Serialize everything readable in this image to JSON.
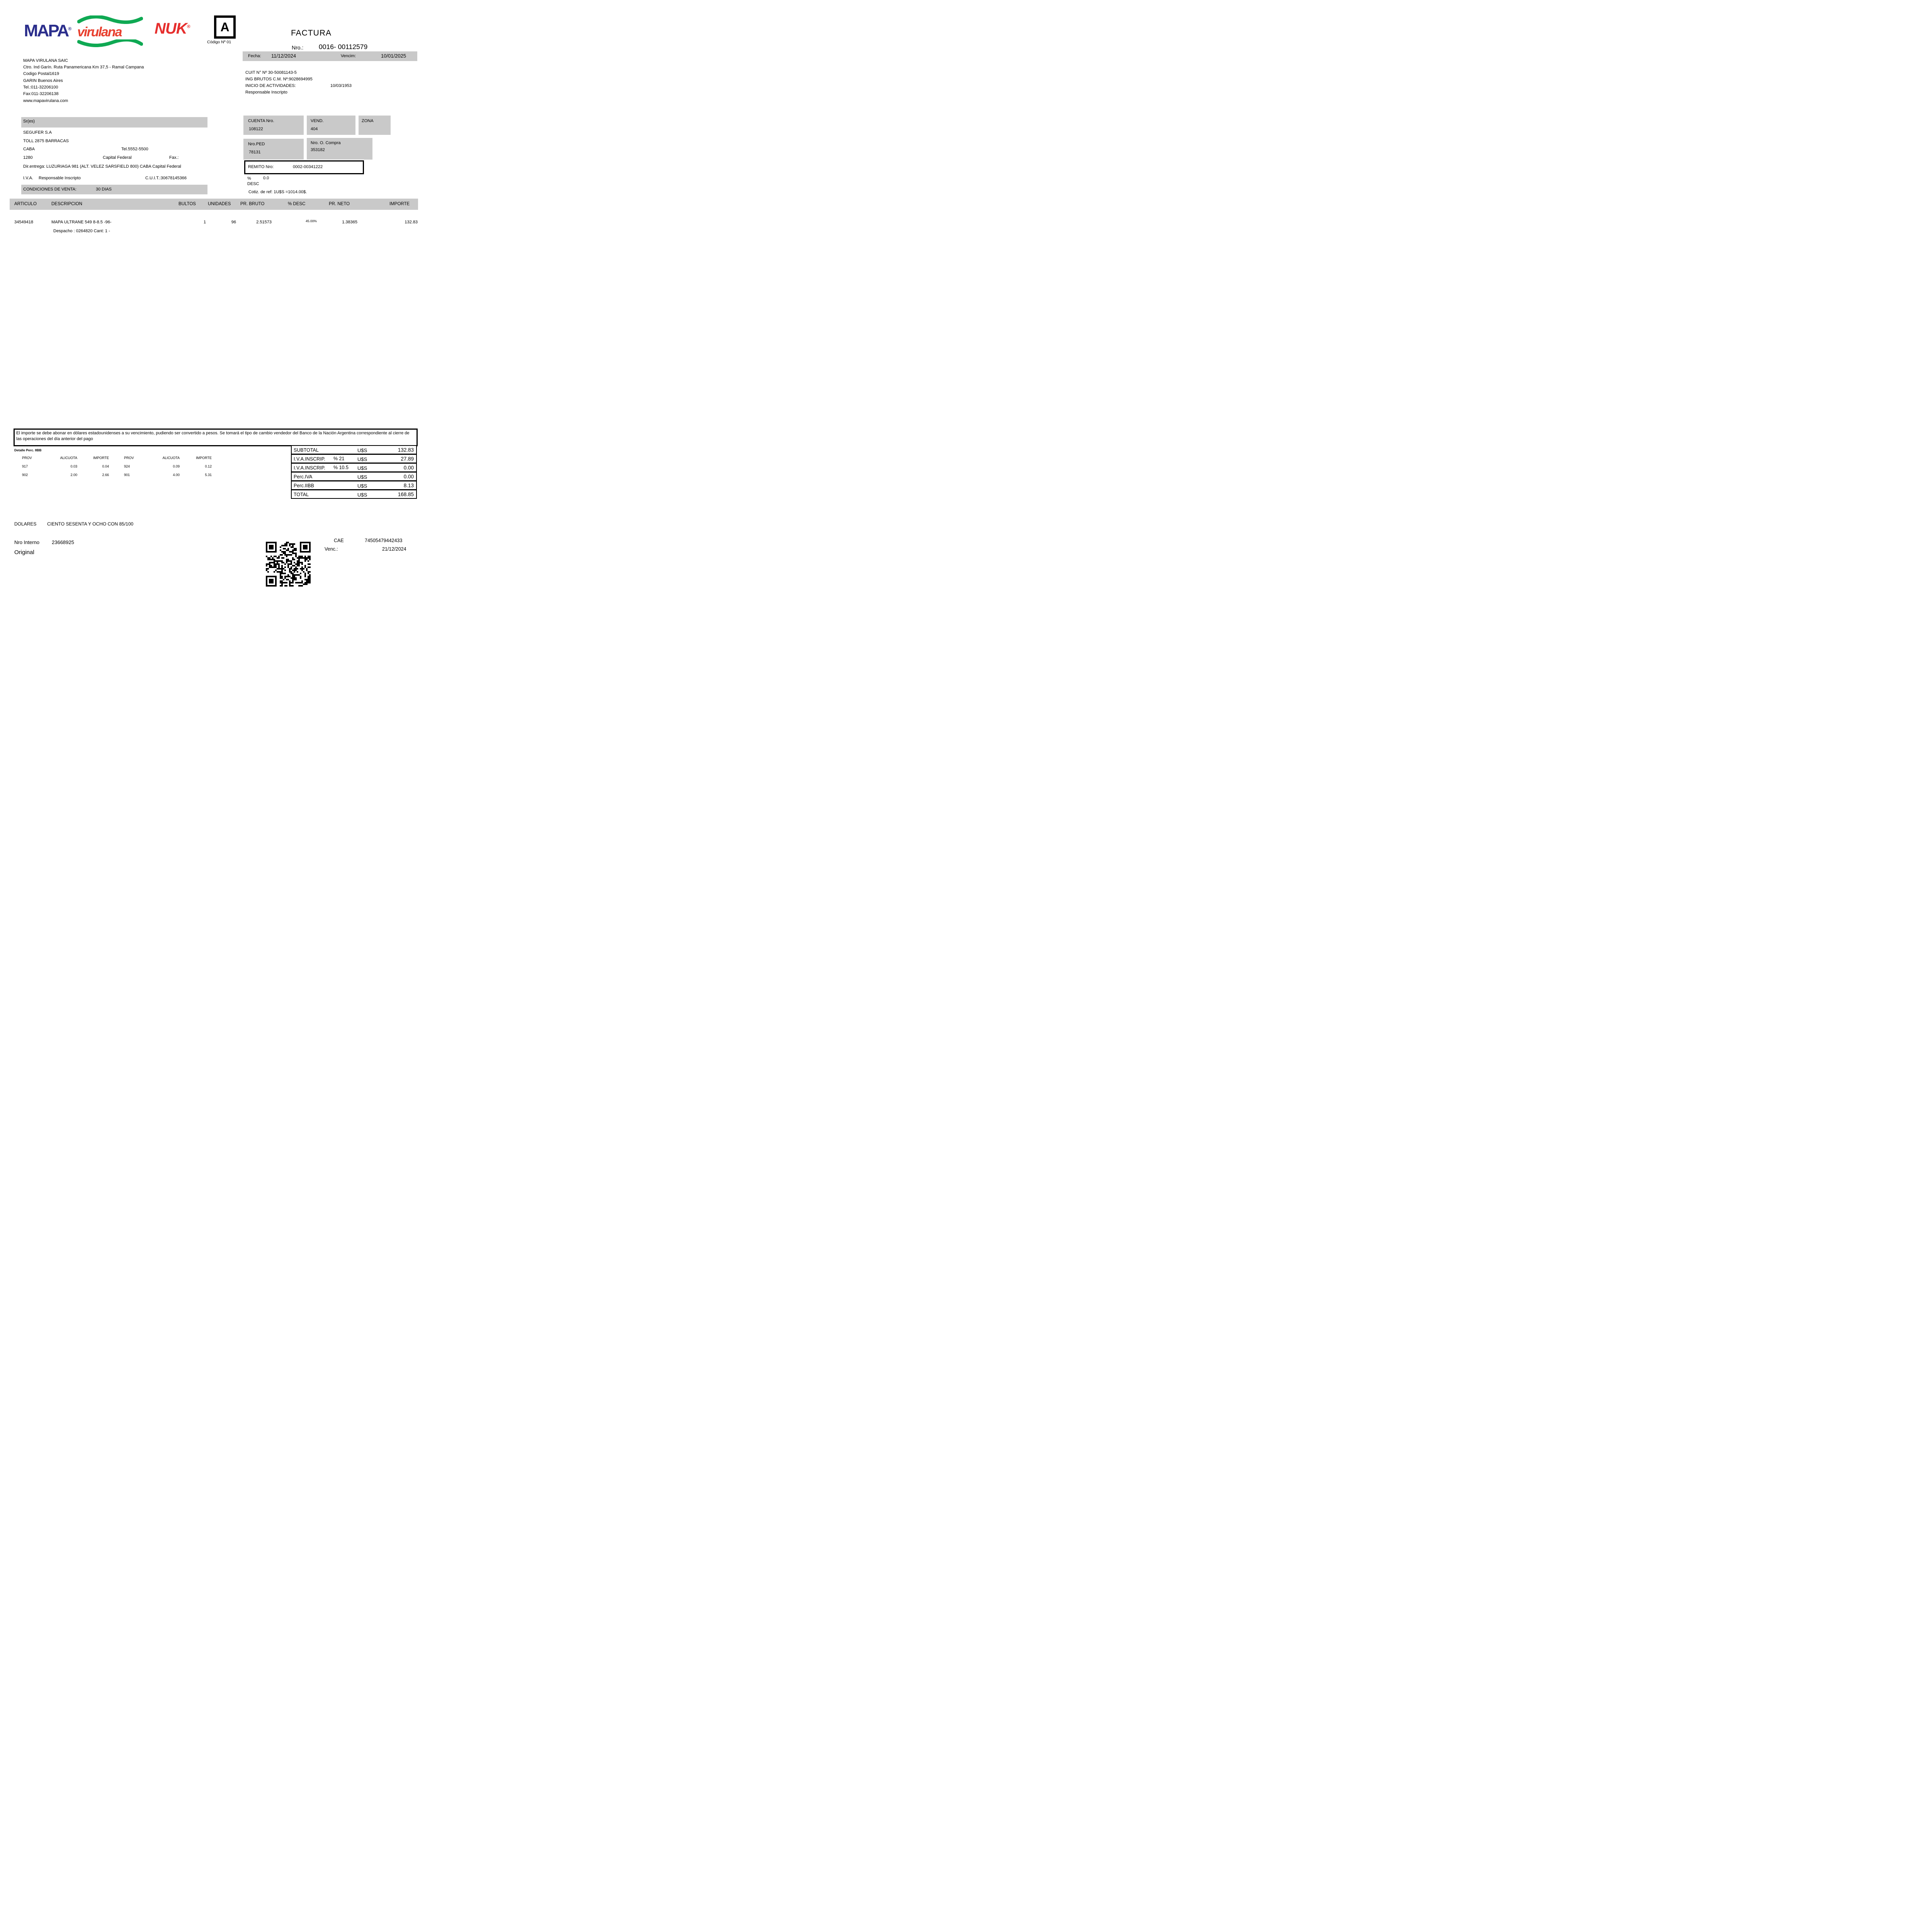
{
  "header": {
    "logos": {
      "mapa": "MAPA",
      "virulana": "virulana",
      "nuk": "NUK",
      "reg": "®"
    },
    "letter_box": {
      "letter": "A",
      "code": "Código Nº 01"
    },
    "title": "FACTURA",
    "nro_label": "Nro.:",
    "nro": "0016- 00112579",
    "fecha_label": "Fecha:",
    "fecha": "11/12/2024",
    "vencim_label": "Vencim:",
    "vencim": "10/01/2025"
  },
  "company": {
    "name": "MAPA VIRULANA SAIC",
    "address": "Ctro. Ind Garín. Ruta Panamericana Km 37,5 - Ramal Campana",
    "postal": "Codigo Postal1619",
    "city": "GARIN Buenos Aires",
    "tel": "Tel.:011-32206100",
    "fax": "Fax:011-32206138",
    "web": "www.mapavirulana.com",
    "cuit": "CUIT N° Nº 30-50081143-5",
    "ing_brutos": "ING BRUTOS C.M. Nº:9028694995",
    "inicio_label": "INICIO DE ACTIVIDADES:",
    "inicio_value": "10/03/1953",
    "resp": "Responsable Inscripto"
  },
  "customer": {
    "sres_label": "Sr(es)",
    "name": "SEGUFER S.A",
    "street": "TOLL 2875 BARRACAS",
    "city": "CABA",
    "tel": "Tel.5552-5500",
    "zip": "1280",
    "province": "Capital Federal",
    "fax_label": "Fax.:",
    "delivery": "Dir.entrega: LUZURIAGA 981 (ALT. VELEZ SARSFIELD 800) CABA Capital Federal",
    "iva_label": "I.V.A.",
    "iva_value": "Responsable Inscripto",
    "cuit": "C.U.I.T.:30678145366",
    "cond_label": "CONDICIONES DE VENTA:",
    "cond_value": "30 DIAS"
  },
  "sale_info": {
    "cuenta_label": "CUENTA Nro.",
    "cuenta": "108122",
    "vend_label": "VEND.",
    "vend": "404",
    "zona_label": "ZONA",
    "ped_label": "Nro.PED",
    "ped": "78131",
    "oc_label": "Nro. O. Compra",
    "oc": "353182",
    "remito_label": "REMITO Nro:",
    "remito": "0002-00341222",
    "pct_label": "%",
    "pct_value": "0.0",
    "desc_label": "DESC",
    "cotiz": "Cotiz. de ref: 1U$S =1014.00$."
  },
  "items": {
    "headers": {
      "articulo": "ARTICULO",
      "descripcion": "DESCRIPCION",
      "bultos": "BULTOS",
      "unidades": "UNIDADES",
      "pr_bruto": "PR. BRUTO",
      "desc": "% DESC",
      "pr_neto": "PR. NETO",
      "importe": "IMPORTE"
    },
    "rows": [
      {
        "articulo": "34549418",
        "descripcion": "MAPA ULTRANE 549 8-8.5 -96-",
        "detail": "Despacho : 0264820 Cant: 1 -",
        "bultos": "1",
        "unidades": "96",
        "pr_bruto": "2.51573",
        "desc": "45.00%",
        "pr_neto": "1.38365",
        "importe": "132.83"
      }
    ]
  },
  "note": "El importe se debe abonar en dólares estadounidenses a su vencimiento, pudiendo ser convertido a pesos. Se tomará el tipo de cambio vendedor del Banco de la Nación Argentina correspondiente al cierre de las operaciones del día anterior del pago",
  "perc_iibb": {
    "title": "Detalle Perc. IIBB",
    "headers": [
      "PROV",
      "ALICUOTA",
      "IMPORTE",
      "PROV",
      "ALICUOTA",
      "IMPORTE"
    ],
    "rows": [
      [
        "917",
        "0.03",
        "0.04",
        "924",
        "0.09",
        "0.12"
      ],
      [
        "902",
        "2.00",
        "2.66",
        "901",
        "4.00",
        "5.31"
      ]
    ]
  },
  "totals": {
    "rows": [
      {
        "label": "SUBTOTAL",
        "pct": "",
        "cur": "U$S",
        "value": "132.83"
      },
      {
        "label": "I.V.A.INSCRIP.",
        "pct": "%  21",
        "cur": "U$S",
        "value": "27.89"
      },
      {
        "label": "I.V.A.INSCRIP.",
        "pct": "%  10.5",
        "cur": "U$S",
        "value": "0.00"
      },
      {
        "label": "Perc.IVA",
        "pct": "",
        "cur": "U$S",
        "value": "0.00"
      },
      {
        "label": "Perc.IIBB",
        "pct": "",
        "cur": "U$S",
        "value": "8.13"
      },
      {
        "label": "TOTAL",
        "pct": "",
        "cur": "U$S",
        "value": "168.85"
      }
    ]
  },
  "footer": {
    "words_label": "DOLARES",
    "words": "CIENTO SESENTA Y OCHO CON 85/100",
    "interno_label": "Nro Interno",
    "interno": "23668925",
    "copy": "Original",
    "cae_label": "CAE",
    "cae": "74505479442433",
    "venc_label": "Venc.:",
    "venc": "21/12/2024"
  }
}
